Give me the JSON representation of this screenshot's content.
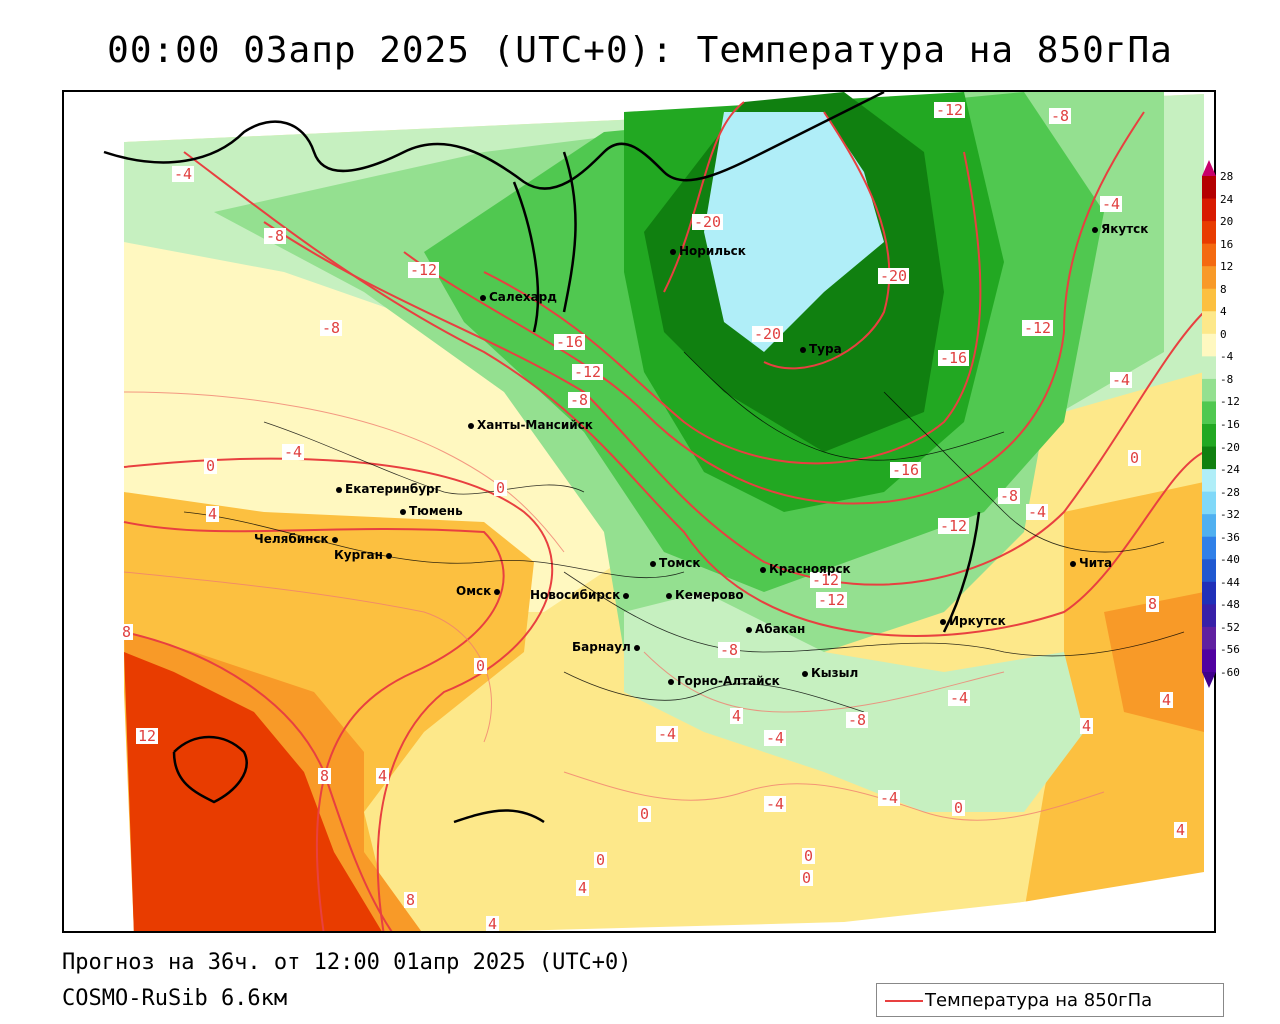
{
  "title": "00:00 03апр 2025 (UTC+0): Температура на 850гПа",
  "forecast_info": "Прогноз на 36ч. от 12:00 01апр 2025 (UTC+0)",
  "model_name": "COSMO-RuSib 6.6км",
  "legend": {
    "label": "Температура на 850гПа",
    "line_color": "#e84040"
  },
  "colorbar": {
    "ticks": [
      "28",
      "24",
      "20",
      "16",
      "12",
      "8",
      "4",
      "0",
      "-4",
      "-8",
      "-12",
      "-16",
      "-20",
      "-24",
      "-28",
      "-32",
      "-36",
      "-40",
      "-44",
      "-48",
      "-52",
      "-56",
      "-60"
    ],
    "colors": [
      "#c8006a",
      "#b40000",
      "#d81a00",
      "#e83c00",
      "#f46a10",
      "#f89a28",
      "#fcc040",
      "#fde88a",
      "#fff8c0",
      "#c6f0c0",
      "#94e090",
      "#50c850",
      "#22a822",
      "#108010",
      "#b0eef8",
      "#80d8f8",
      "#50b0f0",
      "#3080e8",
      "#2058d0",
      "#2030b8",
      "#3820a8",
      "#6020a0",
      "#5000a0",
      "#40008c"
    ]
  },
  "cities": [
    {
      "name": "Норильск"
    },
    {
      "name": "Салехард"
    },
    {
      "name": "Тура"
    },
    {
      "name": "Якутск"
    },
    {
      "name": "Ханты-Мансийск"
    },
    {
      "name": "Екатеринбург"
    },
    {
      "name": "Тюмень"
    },
    {
      "name": "Челябинск"
    },
    {
      "name": "Курган"
    },
    {
      "name": "Омск"
    },
    {
      "name": "Новосибирск"
    },
    {
      "name": "Томск"
    },
    {
      "name": "Кемерово"
    },
    {
      "name": "Красноярск"
    },
    {
      "name": "Абакан"
    },
    {
      "name": "Барнаул"
    },
    {
      "name": "Горно-Алтайск"
    },
    {
      "name": "Кызыл"
    },
    {
      "name": "Иркутск"
    },
    {
      "name": "Чита"
    }
  ],
  "contour_labels": [
    "-12",
    "-8",
    "-4",
    "-8",
    "-12",
    "-8",
    "-20",
    "-20",
    "-20",
    "-16",
    "-12",
    "-16",
    "-12",
    "-8",
    "-4",
    "-4",
    "-16",
    "0",
    "-4",
    "0",
    "4",
    "-12",
    "-8",
    "-4",
    "-12",
    "-12",
    "-8",
    "0",
    "8",
    "8",
    "0",
    "-4",
    "4",
    "-4",
    "-4",
    "-4",
    "-8",
    "-4",
    "0",
    "12",
    "8",
    "4",
    "0",
    "0",
    "4",
    "4",
    "8",
    "4",
    "0",
    "0",
    "4",
    "4"
  ]
}
